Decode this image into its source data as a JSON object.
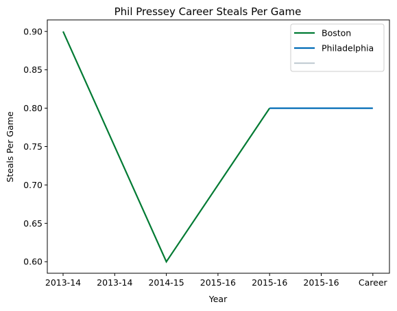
{
  "chart_data": {
    "type": "line",
    "title": "Phil Pressey Career Steals Per Game",
    "xlabel": "Year",
    "ylabel": "Steals Per Game",
    "categories": [
      "2013-14",
      "2013-14",
      "2014-15",
      "2015-16",
      "2015-16",
      "2015-16",
      "Career"
    ],
    "ylim": [
      0.585,
      0.915
    ],
    "yticks": [
      "0.60",
      "0.65",
      "0.70",
      "0.75",
      "0.80",
      "0.85",
      "0.90"
    ],
    "ytick_values": [
      0.6,
      0.65,
      0.7,
      0.75,
      0.8,
      0.85,
      0.9
    ],
    "grid": false,
    "legend_position": "top-right",
    "series": [
      {
        "name": "Boston",
        "color": "#007A33",
        "points": [
          [
            0,
            0.9
          ],
          [
            2,
            0.6
          ],
          [
            4,
            0.8
          ]
        ]
      },
      {
        "name": "Philadelphia",
        "color": "#006BB6",
        "points": [
          [
            4,
            0.8
          ],
          [
            6,
            0.8
          ]
        ]
      },
      {
        "name": "",
        "color": "#C4CED4",
        "points": []
      }
    ]
  }
}
